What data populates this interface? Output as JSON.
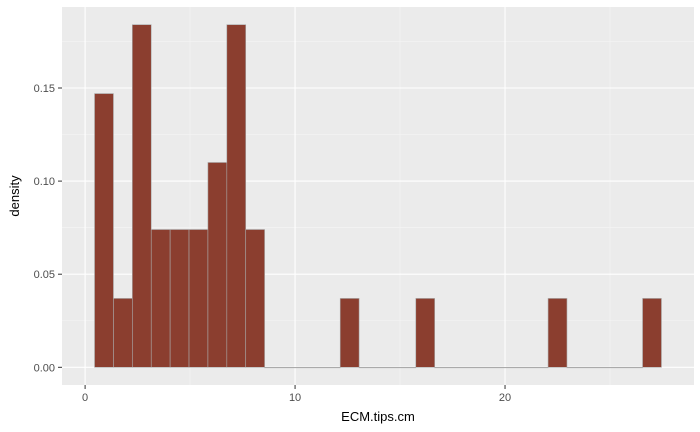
{
  "chart_data": {
    "type": "bar",
    "xlabel": "ECM.tips.cm",
    "ylabel": "density",
    "xlim": [
      -1.1,
      29.0
    ],
    "ylim": [
      -0.0095,
      0.1935
    ],
    "x_ticks": [
      0,
      10,
      20
    ],
    "x_tick_labels": [
      "0",
      "10",
      "20"
    ],
    "y_ticks": [
      0,
      0.05,
      0.1,
      0.15
    ],
    "y_tick_labels": [
      "0.00",
      "0.05",
      "0.10",
      "0.15"
    ],
    "x_minor_ticks": [
      5,
      15,
      25
    ],
    "y_minor_ticks": [
      0.025,
      0.075,
      0.125,
      0.175
    ],
    "bin_width": 0.9,
    "bins": [
      {
        "x0": 0.45,
        "x1": 1.35,
        "density": 0.147
      },
      {
        "x0": 1.35,
        "x1": 2.25,
        "density": 0.037
      },
      {
        "x0": 2.25,
        "x1": 3.15,
        "density": 0.184
      },
      {
        "x0": 3.15,
        "x1": 4.05,
        "density": 0.074
      },
      {
        "x0": 4.05,
        "x1": 4.95,
        "density": 0.074
      },
      {
        "x0": 4.95,
        "x1": 5.85,
        "density": 0.074
      },
      {
        "x0": 5.85,
        "x1": 6.75,
        "density": 0.11
      },
      {
        "x0": 6.75,
        "x1": 7.65,
        "density": 0.184
      },
      {
        "x0": 7.65,
        "x1": 8.55,
        "density": 0.074
      },
      {
        "x0": 8.55,
        "x1": 12.15,
        "density": 0
      },
      {
        "x0": 12.15,
        "x1": 13.05,
        "density": 0.037
      },
      {
        "x0": 13.05,
        "x1": 15.75,
        "density": 0
      },
      {
        "x0": 15.75,
        "x1": 16.65,
        "density": 0.037
      },
      {
        "x0": 16.65,
        "x1": 22.05,
        "density": 0
      },
      {
        "x0": 22.05,
        "x1": 22.95,
        "density": 0.037
      },
      {
        "x0": 22.95,
        "x1": 26.55,
        "density": 0
      },
      {
        "x0": 26.55,
        "x1": 27.45,
        "density": 0.037
      }
    ],
    "grid": true,
    "colors": {
      "bar_fill": "#8B3E2F",
      "bar_outline": "#aaaaaa",
      "panel_background": "#ebebeb",
      "grid_major": "#ffffff",
      "grid_minor": "#f5f5f5"
    }
  }
}
